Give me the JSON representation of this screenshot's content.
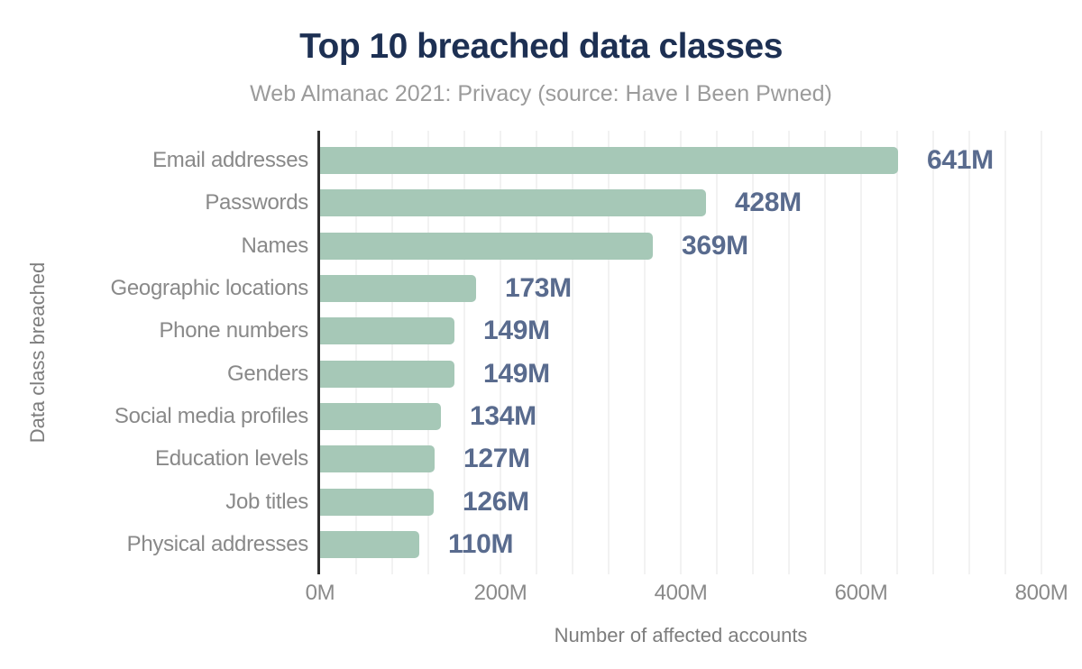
{
  "header": {
    "title": "Top 10 breached data classes",
    "subtitle": "Web Almanac 2021: Privacy (source: Have I Been Pwned)"
  },
  "colors": {
    "bar": "#a6c8b7",
    "title": "#1d3053",
    "subtitle": "#9b9b9b",
    "value_label": "#596b8e",
    "category_label": "#898989",
    "tick_label": "#8a8a8a",
    "axis_title": "#7d7d7d",
    "axis_line": "#2e2e2e",
    "gridline": "#f2f2f2",
    "background": "#ffffff"
  },
  "chart_data": {
    "type": "bar",
    "orientation": "horizontal",
    "title": "Top 10 breached data classes",
    "subtitle": "Web Almanac 2021: Privacy (source: Have I Been Pwned)",
    "categories": [
      "Email addresses",
      "Passwords",
      "Names",
      "Geographic locations",
      "Phone numbers",
      "Genders",
      "Social media profiles",
      "Education levels",
      "Job titles",
      "Physical addresses"
    ],
    "values": [
      641,
      428,
      369,
      173,
      149,
      149,
      134,
      127,
      126,
      110
    ],
    "value_labels": [
      "641M",
      "428M",
      "369M",
      "173M",
      "149M",
      "149M",
      "134M",
      "127M",
      "126M",
      "110M"
    ],
    "xlabel": "Number of affected accounts",
    "ylabel": "Data class breached",
    "xlim": [
      0,
      800
    ],
    "x_ticks": [
      "0M",
      "200M",
      "400M",
      "600M",
      "800M"
    ],
    "x_tick_values": [
      0,
      200,
      400,
      600,
      800
    ],
    "minor_grid_interval": 40,
    "grid": "vertical-minor",
    "legend": "none",
    "bar_value_unit": "M"
  }
}
